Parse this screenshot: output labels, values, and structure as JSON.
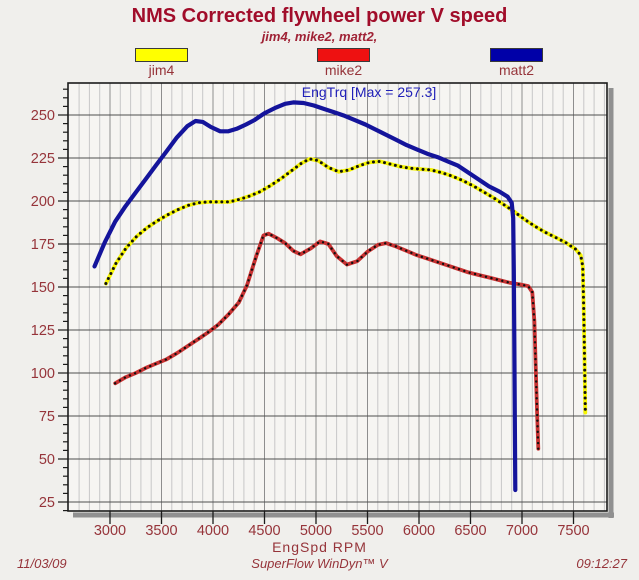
{
  "title": "NMS Corrected flywheel power V speed",
  "subtitle": "jim4, mike2, matt2,",
  "legend": [
    {
      "label": "jim4",
      "color": "#ffff00"
    },
    {
      "label": "mike2",
      "color": "#ee1111"
    },
    {
      "label": "matt2",
      "color": "#0000a8"
    }
  ],
  "footer": {
    "date": "11/03/09",
    "app": "SuperFlow WinDyn™ V",
    "time": "09:12:27"
  },
  "chart_data": {
    "type": "line",
    "title": "NMS Corrected flywheel power V speed",
    "annotation": "EngTrq [Max = 257.3]",
    "annotation_color": "#2020b8",
    "xlabel": "EngSpd  RPM",
    "ylabel": "",
    "x_ticks": [
      3000,
      3500,
      4000,
      4500,
      5000,
      5500,
      6000,
      6500,
      7000,
      7500
    ],
    "y_ticks": [
      25,
      50,
      75,
      100,
      125,
      150,
      175,
      200,
      225,
      250
    ],
    "xlim": [
      2590,
      7830
    ],
    "ylim": [
      19,
      268
    ],
    "grid": "on",
    "legend_position": "top",
    "max_value": 257.3,
    "series": [
      {
        "name": "jim4",
        "color": "#f5f500",
        "dotted": true,
        "points": [
          [
            2960,
            152
          ],
          [
            3060,
            164
          ],
          [
            3160,
            173
          ],
          [
            3260,
            179.5
          ],
          [
            3360,
            184.5
          ],
          [
            3460,
            188.5
          ],
          [
            3560,
            192
          ],
          [
            3660,
            195
          ],
          [
            3760,
            197.5
          ],
          [
            3860,
            199
          ],
          [
            3960,
            199.5
          ],
          [
            4060,
            199.5
          ],
          [
            4160,
            199.5
          ],
          [
            4260,
            201
          ],
          [
            4360,
            203
          ],
          [
            4460,
            205.5
          ],
          [
            4560,
            209
          ],
          [
            4660,
            213
          ],
          [
            4760,
            217.5
          ],
          [
            4860,
            222
          ],
          [
            4940,
            224.5
          ],
          [
            5020,
            223.5
          ],
          [
            5120,
            219.5
          ],
          [
            5220,
            217
          ],
          [
            5320,
            218
          ],
          [
            5420,
            220.5
          ],
          [
            5520,
            222.5
          ],
          [
            5620,
            223
          ],
          [
            5720,
            221.5
          ],
          [
            5820,
            220
          ],
          [
            5920,
            219
          ],
          [
            6020,
            218.5
          ],
          [
            6120,
            218
          ],
          [
            6220,
            216.5
          ],
          [
            6320,
            214.5
          ],
          [
            6420,
            212
          ],
          [
            6520,
            209
          ],
          [
            6620,
            205.5
          ],
          [
            6720,
            202
          ],
          [
            6820,
            198
          ],
          [
            6920,
            194
          ],
          [
            7020,
            189.5
          ],
          [
            7120,
            185.5
          ],
          [
            7220,
            182
          ],
          [
            7320,
            179
          ],
          [
            7420,
            176
          ],
          [
            7520,
            172
          ],
          [
            7570,
            168.5
          ],
          [
            7590,
            162
          ],
          [
            7600,
            135
          ],
          [
            7608,
            105
          ],
          [
            7615,
            77
          ]
        ]
      },
      {
        "name": "mike2",
        "color": "#c83232",
        "dotted": true,
        "points": [
          [
            3050,
            94
          ],
          [
            3150,
            97.5
          ],
          [
            3250,
            100
          ],
          [
            3350,
            103
          ],
          [
            3450,
            105.5
          ],
          [
            3550,
            108
          ],
          [
            3650,
            111.5
          ],
          [
            3750,
            115.5
          ],
          [
            3850,
            119.5
          ],
          [
            3950,
            123.5
          ],
          [
            4050,
            128
          ],
          [
            4150,
            134
          ],
          [
            4250,
            141
          ],
          [
            4330,
            151
          ],
          [
            4420,
            168
          ],
          [
            4490,
            180
          ],
          [
            4540,
            181
          ],
          [
            4620,
            178.5
          ],
          [
            4700,
            175.5
          ],
          [
            4780,
            171
          ],
          [
            4850,
            169
          ],
          [
            4950,
            172.5
          ],
          [
            5040,
            176.5
          ],
          [
            5120,
            175
          ],
          [
            5200,
            168
          ],
          [
            5300,
            163
          ],
          [
            5400,
            165
          ],
          [
            5500,
            170.5
          ],
          [
            5600,
            174.5
          ],
          [
            5680,
            175.5
          ],
          [
            5780,
            173.5
          ],
          [
            5880,
            171
          ],
          [
            5980,
            168.5
          ],
          [
            6080,
            166.5
          ],
          [
            6180,
            164.5
          ],
          [
            6280,
            162.5
          ],
          [
            6380,
            160.5
          ],
          [
            6480,
            158.5
          ],
          [
            6580,
            157
          ],
          [
            6680,
            155.5
          ],
          [
            6780,
            154
          ],
          [
            6880,
            152.5
          ],
          [
            6980,
            151.5
          ],
          [
            7060,
            150.5
          ],
          [
            7100,
            147
          ],
          [
            7120,
            130
          ],
          [
            7135,
            100
          ],
          [
            7148,
            75
          ],
          [
            7158,
            56
          ]
        ]
      },
      {
        "name": "matt2",
        "color": "#14149b",
        "dotted": false,
        "points": [
          [
            2850,
            162
          ],
          [
            2950,
            176
          ],
          [
            3050,
            188
          ],
          [
            3150,
            197
          ],
          [
            3250,
            205
          ],
          [
            3350,
            213
          ],
          [
            3450,
            221
          ],
          [
            3550,
            229
          ],
          [
            3650,
            237
          ],
          [
            3750,
            243.5
          ],
          [
            3830,
            246.5
          ],
          [
            3900,
            246
          ],
          [
            3980,
            243
          ],
          [
            4070,
            240.5
          ],
          [
            4150,
            240.5
          ],
          [
            4230,
            242
          ],
          [
            4320,
            244.5
          ],
          [
            4400,
            247
          ],
          [
            4500,
            251
          ],
          [
            4600,
            254
          ],
          [
            4700,
            256.5
          ],
          [
            4780,
            257.3
          ],
          [
            4880,
            257
          ],
          [
            4980,
            255.5
          ],
          [
            5080,
            253.5
          ],
          [
            5180,
            251.5
          ],
          [
            5280,
            249.5
          ],
          [
            5380,
            247
          ],
          [
            5480,
            244.5
          ],
          [
            5580,
            241.5
          ],
          [
            5680,
            238.5
          ],
          [
            5780,
            235.5
          ],
          [
            5880,
            232.5
          ],
          [
            5980,
            230
          ],
          [
            6080,
            227.5
          ],
          [
            6180,
            225.5
          ],
          [
            6280,
            223
          ],
          [
            6380,
            220.5
          ],
          [
            6480,
            216.5
          ],
          [
            6580,
            212.5
          ],
          [
            6680,
            208.5
          ],
          [
            6780,
            205.5
          ],
          [
            6860,
            202.5
          ],
          [
            6900,
            199
          ],
          [
            6915,
            190
          ],
          [
            6920,
            160
          ],
          [
            6925,
            120
          ],
          [
            6930,
            75
          ],
          [
            6935,
            32
          ]
        ]
      }
    ]
  }
}
